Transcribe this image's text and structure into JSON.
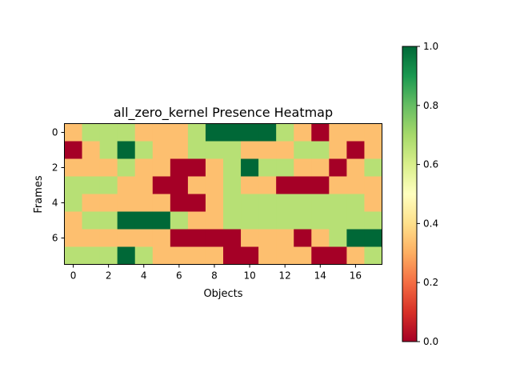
{
  "chart_data": {
    "type": "heatmap",
    "title": "all_zero_kernel Presence Heatmap",
    "xlabel": "Objects",
    "ylabel": "Frames",
    "x_ticks": [
      0,
      2,
      4,
      6,
      8,
      10,
      12,
      14,
      16
    ],
    "y_ticks": [
      0,
      2,
      4,
      6
    ],
    "columns": 18,
    "rows_count": 8,
    "colormap": "RdYlGn",
    "vmin": 0.0,
    "vmax": 1.0,
    "colorbar_ticks": [
      "0.0",
      "0.2",
      "0.4",
      "0.6",
      "0.8",
      "1.0"
    ],
    "rows": [
      [
        0.33,
        0.67,
        0.67,
        0.67,
        0.33,
        0.33,
        0.33,
        0.67,
        1.0,
        1.0,
        1.0,
        1.0,
        0.67,
        0.33,
        0.0,
        0.33,
        0.33,
        0.33
      ],
      [
        0.0,
        0.33,
        0.67,
        1.0,
        0.67,
        0.33,
        0.33,
        0.67,
        0.67,
        0.67,
        0.33,
        0.33,
        0.33,
        0.67,
        0.67,
        0.33,
        0.0,
        0.33
      ],
      [
        0.33,
        0.33,
        0.33,
        0.67,
        0.33,
        0.33,
        0.0,
        0.0,
        0.33,
        0.67,
        1.0,
        0.67,
        0.67,
        0.33,
        0.33,
        0.0,
        0.33,
        0.67
      ],
      [
        0.67,
        0.67,
        0.67,
        0.33,
        0.33,
        0.0,
        0.0,
        0.33,
        0.33,
        0.67,
        0.33,
        0.33,
        0.0,
        0.0,
        0.0,
        0.33,
        0.33,
        0.33
      ],
      [
        0.67,
        0.33,
        0.33,
        0.33,
        0.33,
        0.33,
        0.0,
        0.0,
        0.33,
        0.67,
        0.67,
        0.67,
        0.67,
        0.67,
        0.67,
        0.67,
        0.67,
        0.33
      ],
      [
        0.33,
        0.67,
        0.67,
        1.0,
        1.0,
        1.0,
        0.67,
        0.33,
        0.33,
        0.67,
        0.67,
        0.67,
        0.67,
        0.67,
        0.67,
        0.67,
        0.67,
        0.67
      ],
      [
        0.33,
        0.33,
        0.33,
        0.33,
        0.33,
        0.33,
        0.0,
        0.0,
        0.0,
        0.0,
        0.33,
        0.33,
        0.33,
        0.0,
        0.33,
        0.67,
        1.0,
        1.0
      ],
      [
        0.67,
        0.67,
        0.67,
        1.0,
        0.67,
        0.33,
        0.33,
        0.33,
        0.33,
        0.0,
        0.0,
        0.33,
        0.33,
        0.33,
        0.0,
        0.0,
        0.33,
        0.67
      ]
    ],
    "colors": {
      "0.0": "#a50026",
      "0.33": "#fdbf6f",
      "0.67": "#b7e075",
      "1.0": "#006837"
    }
  }
}
